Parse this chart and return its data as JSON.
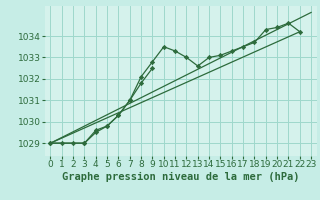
{
  "background_color": "#c6ede6",
  "plot_bg_color": "#d5f2ec",
  "line_color": "#2d6b3c",
  "grid_color": "#9fd8cc",
  "xlabel": "Graphe pression niveau de la mer (hPa)",
  "ylim": [
    1028.4,
    1035.4
  ],
  "xlim": [
    -0.5,
    23.5
  ],
  "yticks": [
    1029,
    1030,
    1031,
    1032,
    1033,
    1034
  ],
  "xticks": [
    0,
    1,
    2,
    3,
    4,
    5,
    6,
    7,
    8,
    9,
    10,
    11,
    12,
    13,
    14,
    15,
    16,
    17,
    18,
    19,
    20,
    21,
    22,
    23
  ],
  "series1_x": [
    0,
    1,
    2,
    3,
    4,
    5,
    6,
    7,
    8,
    9,
    10,
    11,
    12,
    13,
    14,
    15,
    16,
    17,
    18,
    19,
    20,
    21,
    22
  ],
  "series1_y": [
    1029.0,
    1029.0,
    1029.0,
    1029.0,
    1029.5,
    1029.8,
    1030.3,
    1031.0,
    1032.1,
    1032.8,
    1033.5,
    1033.3,
    1033.0,
    1032.6,
    1033.0,
    1033.1,
    1033.3,
    1033.5,
    1033.7,
    1034.3,
    1034.4,
    1034.6,
    1034.2
  ],
  "series2_x": [
    0,
    3,
    4,
    5,
    6,
    7,
    8,
    9
  ],
  "series2_y": [
    1029.0,
    1029.0,
    1029.6,
    1029.8,
    1030.3,
    1031.0,
    1031.8,
    1032.5
  ],
  "series3_x": [
    0,
    22
  ],
  "series3_y": [
    1029.0,
    1034.2
  ],
  "series4_x": [
    0,
    23
  ],
  "series4_y": [
    1029.0,
    1035.1
  ],
  "tick_fontsize": 6.5,
  "xlabel_fontsize": 7.5
}
